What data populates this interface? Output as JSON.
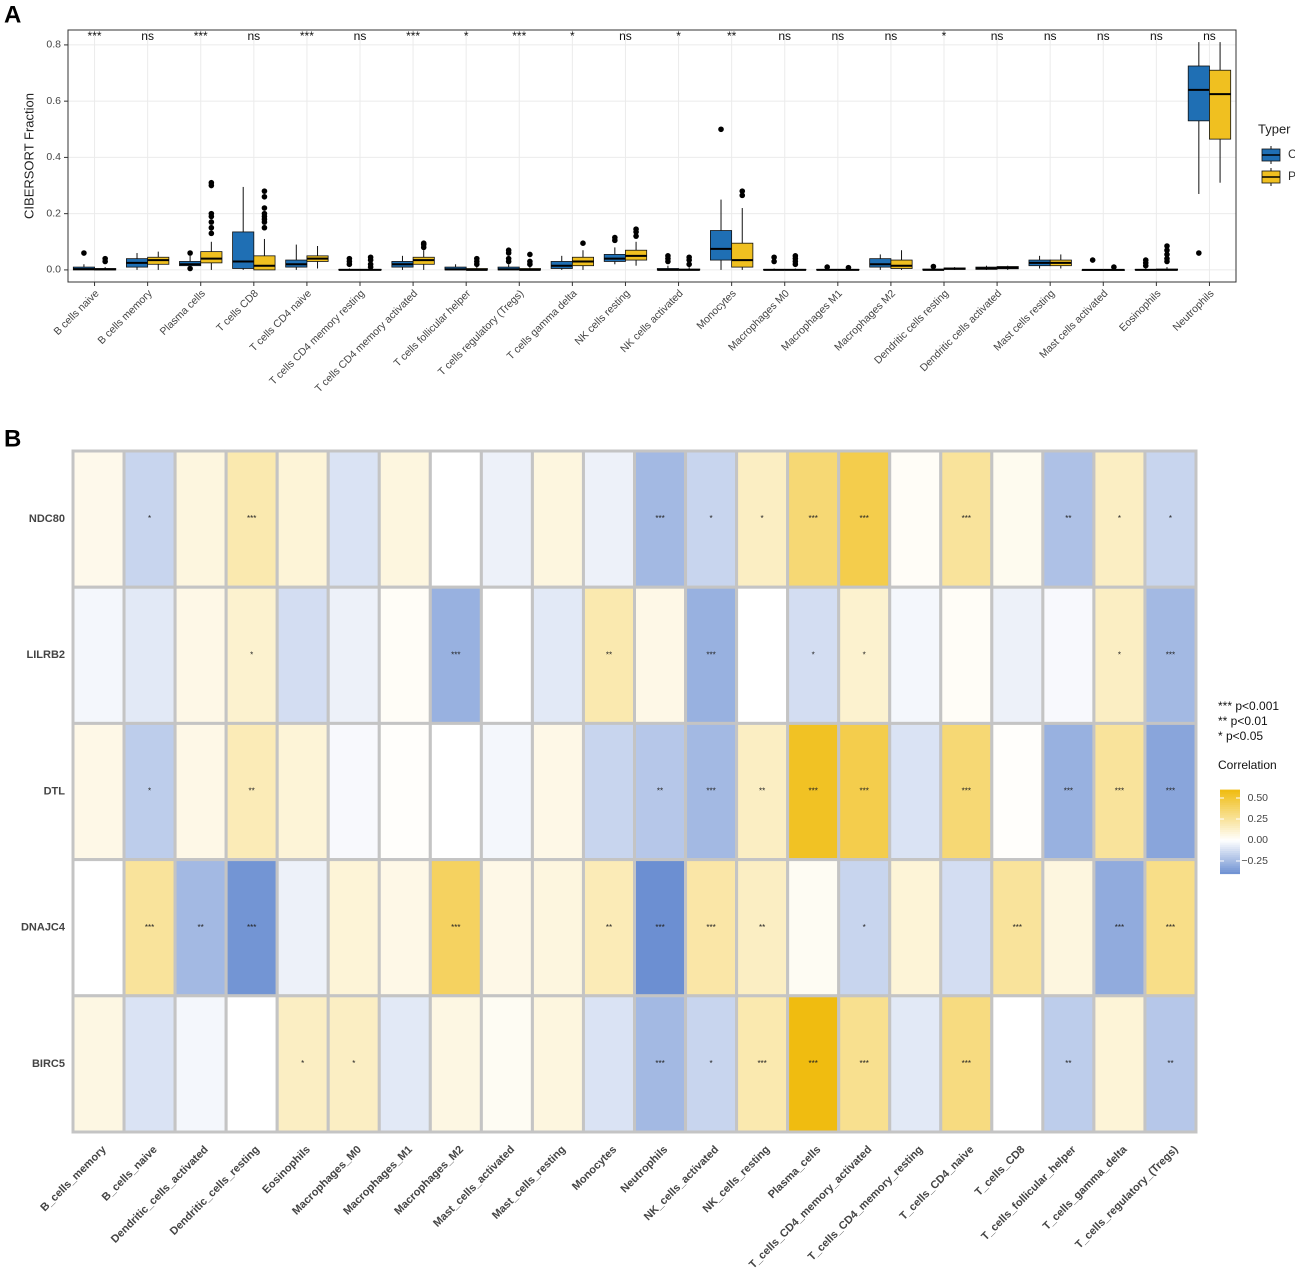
{
  "chart_data": [
    {
      "type": "box",
      "panel": "A",
      "y_label": "CIBERSORT Fraction",
      "legend_title": "Typer",
      "legend_position": "right",
      "grid": true,
      "categories": [
        "B cells naive",
        "B cells memory",
        "Plasma cells",
        "T cells CD8",
        "T cells CD4 naive",
        "T cells CD4 memory resting",
        "T cells CD4 memory activated",
        "T cells follicular helper",
        "T cells regulatory (Tregs)",
        "T cells gamma delta",
        "NK cells resting",
        "NK cells activated",
        "Monocytes",
        "Macrophages M0",
        "Macrophages M1",
        "Macrophages M2",
        "Dendritic cells resting",
        "Dendritic cells activated",
        "Mast cells resting",
        "Mast cells activated",
        "Eosinophils",
        "Neutrophils"
      ],
      "significance": [
        "***",
        "ns",
        "***",
        "ns",
        "***",
        "ns",
        "***",
        "*",
        "***",
        "*",
        "ns",
        "*",
        "**",
        "ns",
        "ns",
        "ns",
        "*",
        "ns",
        "ns",
        "ns",
        "ns",
        "ns"
      ],
      "ylim": [
        -0.043,
        0.853
      ],
      "yticks": [
        {
          "value": 0,
          "label": "0.0"
        },
        0.2,
        0.4,
        0.6,
        0.8
      ],
      "series": [
        {
          "name": "C",
          "color": "#1f6fb4",
          "values": [
            {
              "min": 0,
              "q1": 0,
              "median": 0.003,
              "q3": 0.01,
              "max": 0.02,
              "outliers": [
                0.06
              ]
            },
            {
              "min": 0,
              "q1": 0.01,
              "median": 0.025,
              "q3": 0.04,
              "max": 0.06,
              "outliers": []
            },
            {
              "min": 0,
              "q1": 0.015,
              "median": 0.02,
              "q3": 0.03,
              "max": 0.05,
              "outliers": [
                0.06,
                0.005
              ]
            },
            {
              "min": 0,
              "q1": 0.005,
              "median": 0.03,
              "q3": 0.135,
              "max": 0.295,
              "outliers": []
            },
            {
              "min": 0,
              "q1": 0.01,
              "median": 0.02,
              "q3": 0.035,
              "max": 0.09,
              "outliers": []
            },
            {
              "min": 0,
              "q1": 0,
              "median": 0,
              "q3": 0.002,
              "max": 0.005,
              "outliers": [
                0.04,
                0.03,
                0.02
              ]
            },
            {
              "min": 0,
              "q1": 0.01,
              "median": 0.02,
              "q3": 0.03,
              "max": 0.05,
              "outliers": []
            },
            {
              "min": 0,
              "q1": 0,
              "median": 0.002,
              "q3": 0.01,
              "max": 0.02,
              "outliers": []
            },
            {
              "min": 0,
              "q1": 0,
              "median": 0.002,
              "q3": 0.01,
              "max": 0.02,
              "outliers": [
                0.07,
                0.06,
                0.04,
                0.03
              ]
            },
            {
              "min": 0,
              "q1": 0.005,
              "median": 0.015,
              "q3": 0.03,
              "max": 0.05,
              "outliers": []
            },
            {
              "min": 0.02,
              "q1": 0.03,
              "median": 0.04,
              "q3": 0.055,
              "max": 0.08,
              "outliers": [
                0.115,
                0.105
              ]
            },
            {
              "min": 0,
              "q1": 0,
              "median": 0,
              "q3": 0.005,
              "max": 0.015,
              "outliers": [
                0.05,
                0.04,
                0.03
              ]
            },
            {
              "min": 0,
              "q1": 0.035,
              "median": 0.075,
              "q3": 0.14,
              "max": 0.25,
              "outliers": [
                0.5
              ]
            },
            {
              "min": 0,
              "q1": 0,
              "median": 0,
              "q3": 0.002,
              "max": 0.005,
              "outliers": [
                0.045,
                0.03
              ]
            },
            {
              "min": 0,
              "q1": 0,
              "median": 0,
              "q3": 0.002,
              "max": 0.005,
              "outliers": [
                0.01
              ]
            },
            {
              "min": 0,
              "q1": 0.01,
              "median": 0.02,
              "q3": 0.04,
              "max": 0.055,
              "outliers": []
            },
            {
              "min": 0,
              "q1": 0,
              "median": 0,
              "q3": 0.003,
              "max": 0.008,
              "outliers": [
                0.012
              ]
            },
            {
              "min": 0,
              "q1": 0.002,
              "median": 0.005,
              "q3": 0.01,
              "max": 0.015,
              "outliers": []
            },
            {
              "min": 0.005,
              "q1": 0.015,
              "median": 0.025,
              "q3": 0.035,
              "max": 0.05,
              "outliers": []
            },
            {
              "min": 0,
              "q1": 0,
              "median": 0,
              "q3": 0,
              "max": 0.002,
              "outliers": [
                0.035
              ]
            },
            {
              "min": 0,
              "q1": 0,
              "median": 0,
              "q3": 0.002,
              "max": 0.005,
              "outliers": [
                0.035,
                0.025,
                0.015
              ]
            },
            {
              "min": 0.27,
              "q1": 0.53,
              "median": 0.64,
              "q3": 0.725,
              "max": 0.81,
              "outliers": [
                0.06
              ]
            }
          ]
        },
        {
          "name": "P",
          "color": "#f0c020",
          "values": [
            {
              "min": 0,
              "q1": 0,
              "median": 0.002,
              "q3": 0.005,
              "max": 0.01,
              "outliers": [
                0.04,
                0.03
              ]
            },
            {
              "min": 0,
              "q1": 0.02,
              "median": 0.035,
              "q3": 0.045,
              "max": 0.065,
              "outliers": []
            },
            {
              "min": 0,
              "q1": 0.025,
              "median": 0.04,
              "q3": 0.065,
              "max": 0.1,
              "outliers": [
                0.31,
                0.3,
                0.2,
                0.19,
                0.17,
                0.15,
                0.13
              ]
            },
            {
              "min": 0,
              "q1": 0,
              "median": 0.015,
              "q3": 0.05,
              "max": 0.11,
              "outliers": [
                0.28,
                0.26,
                0.22,
                0.2,
                0.19,
                0.18,
                0.17,
                0.15
              ]
            },
            {
              "min": 0.005,
              "q1": 0.03,
              "median": 0.04,
              "q3": 0.05,
              "max": 0.085,
              "outliers": []
            },
            {
              "min": 0,
              "q1": 0,
              "median": 0,
              "q3": 0.002,
              "max": 0.005,
              "outliers": [
                0.045,
                0.035,
                0.02,
                0.01
              ]
            },
            {
              "min": 0,
              "q1": 0.02,
              "median": 0.035,
              "q3": 0.045,
              "max": 0.07,
              "outliers": [
                0.095,
                0.09,
                0.08
              ]
            },
            {
              "min": 0,
              "q1": 0,
              "median": 0,
              "q3": 0.005,
              "max": 0.01,
              "outliers": [
                0.04,
                0.03,
                0.02
              ]
            },
            {
              "min": 0,
              "q1": 0,
              "median": 0,
              "q3": 0.005,
              "max": 0.01,
              "outliers": [
                0.055,
                0.03,
                0.02
              ]
            },
            {
              "min": 0,
              "q1": 0.015,
              "median": 0.03,
              "q3": 0.045,
              "max": 0.07,
              "outliers": [
                0.095
              ]
            },
            {
              "min": 0.015,
              "q1": 0.035,
              "median": 0.05,
              "q3": 0.07,
              "max": 0.1,
              "outliers": [
                0.145,
                0.135,
                0.12
              ]
            },
            {
              "min": 0,
              "q1": 0,
              "median": 0,
              "q3": 0.003,
              "max": 0.01,
              "outliers": [
                0.045,
                0.035,
                0.02
              ]
            },
            {
              "min": 0,
              "q1": 0.01,
              "median": 0.035,
              "q3": 0.095,
              "max": 0.22,
              "outliers": [
                0.28,
                0.265
              ]
            },
            {
              "min": 0,
              "q1": 0,
              "median": 0,
              "q3": 0.002,
              "max": 0.005,
              "outliers": [
                0.05,
                0.04,
                0.03,
                0.02
              ]
            },
            {
              "min": 0,
              "q1": 0,
              "median": 0,
              "q3": 0.002,
              "max": 0.005,
              "outliers": [
                0.008
              ]
            },
            {
              "min": 0,
              "q1": 0.005,
              "median": 0.015,
              "q3": 0.035,
              "max": 0.07,
              "outliers": []
            },
            {
              "min": 0,
              "q1": 0.002,
              "median": 0.004,
              "q3": 0.007,
              "max": 0.01,
              "outliers": []
            },
            {
              "min": 0,
              "q1": 0.004,
              "median": 0.008,
              "q3": 0.012,
              "max": 0.015,
              "outliers": []
            },
            {
              "min": 0.005,
              "q1": 0.015,
              "median": 0.025,
              "q3": 0.035,
              "max": 0.055,
              "outliers": []
            },
            {
              "min": 0,
              "q1": 0,
              "median": 0,
              "q3": 0,
              "max": 0.002,
              "outliers": [
                0.01
              ]
            },
            {
              "min": 0,
              "q1": 0,
              "median": 0,
              "q3": 0.003,
              "max": 0.01,
              "outliers": [
                0.085,
                0.07,
                0.055,
                0.04,
                0.03
              ]
            },
            {
              "min": 0.31,
              "q1": 0.465,
              "median": 0.625,
              "q3": 0.71,
              "max": 0.81,
              "outliers": []
            }
          ]
        }
      ]
    },
    {
      "type": "heatmap",
      "panel": "B",
      "colorbar_title": "Correlation",
      "significance_legend": [
        "*** p<0.001",
        "** p<0.01",
        "* p<0.05"
      ],
      "rows": [
        "NDC80",
        "LILRB2",
        "DTL",
        "DNAJC4",
        "BIRC5"
      ],
      "columns": [
        "B_cells_memory",
        "B_cells_naive",
        "Dendritic_cells_activated",
        "Dendritic_cells_resting",
        "Eosinophils",
        "Macrophages_M0",
        "Macrophages_M1",
        "Macrophages_M2",
        "Mast_cells_activated",
        "Mast_cells_resting",
        "Monocytes",
        "Neutrophils",
        "NK_cells_activated",
        "NK_cells_resting",
        "Plasma_cells",
        "T_cells_CD4_memory_activated",
        "T_cells_CD4_memory_resting",
        "T_cells_CD4_naive",
        "T_cells_CD8",
        "T_cells_follicular_helper",
        "T_cells_gamma_delta",
        "T_cells_regulatory_(Tregs)"
      ],
      "values": [
        [
          0.05,
          -0.15,
          0.08,
          0.2,
          0.1,
          -0.1,
          0.08,
          0,
          -0.05,
          0.08,
          -0.05,
          -0.25,
          -0.15,
          0.15,
          0.35,
          0.45,
          0.02,
          0.25,
          0.04,
          -0.22,
          0.15,
          -0.15
        ],
        [
          -0.03,
          -0.08,
          0.06,
          0.12,
          -0.12,
          -0.05,
          0.02,
          -0.28,
          0,
          -0.08,
          0.2,
          0.06,
          -0.28,
          0,
          -0.12,
          0.12,
          -0.03,
          0.02,
          -0.05,
          -0.02,
          0.15,
          -0.25
        ],
        [
          0.06,
          -0.18,
          0.06,
          0.18,
          0.1,
          -0.02,
          0.01,
          0,
          -0.03,
          0.06,
          -0.15,
          -0.2,
          -0.25,
          0.15,
          0.55,
          0.45,
          -0.1,
          0.35,
          0.01,
          -0.28,
          0.25,
          -0.32
        ],
        [
          0,
          0.25,
          -0.25,
          -0.38,
          -0.05,
          0.1,
          0.06,
          0.4,
          0.06,
          0.08,
          0.18,
          -0.4,
          0.22,
          0.15,
          0.03,
          -0.15,
          0.1,
          -0.12,
          0.25,
          0.08,
          -0.3,
          0.3
        ],
        [
          0.07,
          -0.1,
          -0.03,
          0,
          0.15,
          0.15,
          -0.08,
          0.07,
          0.03,
          0.08,
          -0.1,
          -0.25,
          -0.15,
          0.2,
          0.6,
          0.28,
          -0.08,
          0.32,
          0,
          -0.18,
          0.1,
          -0.2
        ]
      ],
      "significance": [
        [
          null,
          "*",
          null,
          "***",
          null,
          null,
          null,
          null,
          null,
          null,
          null,
          "***",
          "*",
          "*",
          "***",
          "***",
          null,
          "***",
          null,
          "**",
          "*",
          "*"
        ],
        [
          null,
          null,
          null,
          "*",
          null,
          null,
          null,
          "***",
          null,
          null,
          "**",
          null,
          "***",
          null,
          "*",
          "*",
          null,
          null,
          null,
          null,
          "*",
          "***"
        ],
        [
          null,
          "*",
          null,
          "**",
          null,
          null,
          null,
          null,
          null,
          null,
          null,
          "**",
          "***",
          "**",
          "***",
          "***",
          null,
          "***",
          null,
          "***",
          "***",
          "***"
        ],
        [
          null,
          "***",
          "**",
          "***",
          null,
          null,
          null,
          "***",
          null,
          null,
          "**",
          "***",
          "***",
          "**",
          null,
          "*",
          null,
          null,
          "***",
          null,
          "***",
          "***"
        ],
        [
          null,
          null,
          null,
          null,
          "*",
          "*",
          null,
          null,
          null,
          null,
          null,
          "***",
          "*",
          "***",
          "***",
          "***",
          null,
          "***",
          null,
          "**",
          null,
          "**"
        ]
      ],
      "clim": [
        -0.4,
        0.6
      ],
      "colors": {
        "low": "#6c8fd2",
        "mid": "#ffffff",
        "high": "#f0bc10"
      },
      "colorbar_ticks": [
        {
          "value": 0.5,
          "label": "0.50"
        },
        {
          "value": 0.25,
          "label": "0.25"
        },
        {
          "value": 0,
          "label": "0.00"
        },
        {
          "value": -0.25,
          "label": "−0.25"
        }
      ]
    }
  ]
}
